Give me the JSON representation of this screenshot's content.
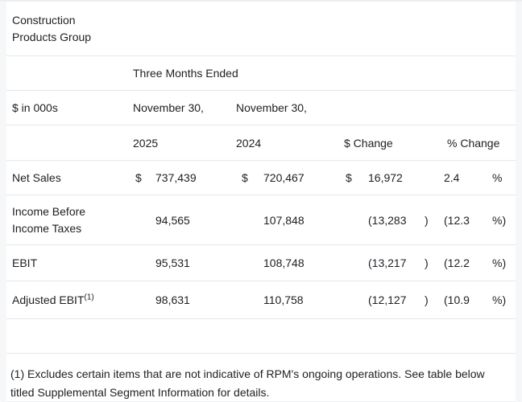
{
  "page": {
    "title": "Construction Products Group"
  },
  "table": {
    "span_header": "Three Months Ended",
    "units_label": "$ in 000s",
    "col_2025": {
      "period": "November 30,",
      "year": "2025"
    },
    "col_2024": {
      "period": "November 30,",
      "year": "2024"
    },
    "dollar_change_header": "$ Change",
    "percent_change_header": "% Change",
    "rows": [
      {
        "label": "Net Sales",
        "sym_2025": "$",
        "val_2025": "737,439",
        "sym_2024": "$",
        "val_2024": "720,467",
        "sym_change": "$",
        "dollar_change": "16,972",
        "dollar_paren": "",
        "percent_change": "2.4",
        "percent_sym": "%"
      },
      {
        "label": "Income Before Income Taxes",
        "sym_2025": "",
        "val_2025": "94,565",
        "sym_2024": "",
        "val_2024": "107,848",
        "sym_change": "",
        "dollar_change": "(13,283",
        "dollar_paren": ")",
        "percent_change": "(12.3",
        "percent_sym": "%)"
      },
      {
        "label": "EBIT",
        "sym_2025": "",
        "val_2025": "95,531",
        "sym_2024": "",
        "val_2024": "108,748",
        "sym_change": "",
        "dollar_change": "(13,217",
        "dollar_paren": ")",
        "percent_change": "(12.2",
        "percent_sym": "%)"
      },
      {
        "label": "Adjusted EBIT",
        "label_superscript": "(1)",
        "sym_2025": "",
        "val_2025": "98,631",
        "sym_2024": "",
        "val_2024": "110,758",
        "sym_change": "",
        "dollar_change": "(12,127",
        "dollar_paren": ")",
        "percent_change": "(10.9",
        "percent_sym": "%)"
      }
    ]
  },
  "footnote": "(1) Excludes certain items that are not indicative of RPM's ongoing operations. See table below titled Supplemental Segment Information for details.",
  "colors": {
    "row_background": "#ffffff",
    "page_background": "#f6f7f9",
    "divider": "#e5e7ea",
    "text": "#1d1f23"
  }
}
